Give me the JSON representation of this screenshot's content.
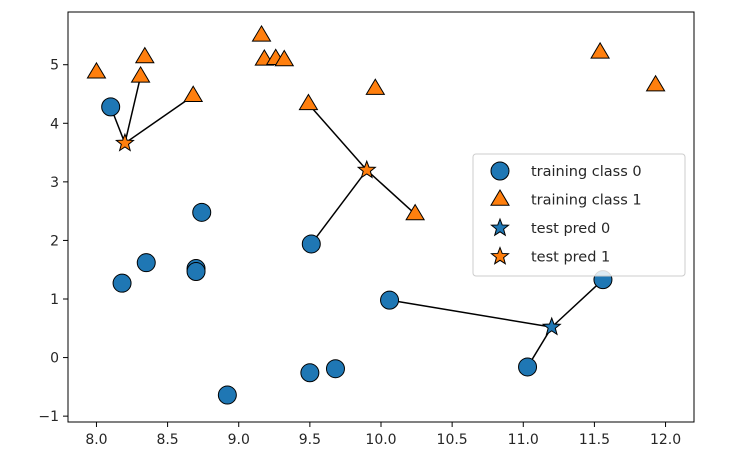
{
  "chart_data": {
    "type": "scatter",
    "title": "",
    "xlabel": "",
    "ylabel": "",
    "xlim": [
      7.8,
      12.2
    ],
    "ylim": [
      -1.1,
      5.9
    ],
    "x_ticks": [
      8.0,
      8.5,
      9.0,
      9.5,
      10.0,
      10.5,
      11.0,
      11.5,
      12.0
    ],
    "x_tick_labels": [
      "8.0",
      "8.5",
      "9.0",
      "9.5",
      "10.0",
      "10.5",
      "11.0",
      "11.5",
      "12.0"
    ],
    "y_ticks": [
      -1,
      0,
      1,
      2,
      3,
      4,
      5
    ],
    "y_tick_labels": [
      "−1",
      "0",
      "1",
      "2",
      "3",
      "4",
      "5"
    ],
    "grid": false,
    "legend_position": "center-right",
    "colors": {
      "class0": "#1f77b4",
      "class1": "#ff7f0e",
      "edge": "#000000",
      "line": "#000000"
    },
    "series": [
      {
        "name": "training class 0",
        "marker": "circle",
        "color": "#1f77b4",
        "points": [
          [
            8.1,
            4.28
          ],
          [
            8.18,
            1.27
          ],
          [
            8.35,
            1.62
          ],
          [
            8.7,
            1.52
          ],
          [
            8.7,
            1.47
          ],
          [
            8.74,
            2.48
          ],
          [
            8.92,
            -0.64
          ],
          [
            9.5,
            -0.26
          ],
          [
            9.51,
            1.94
          ],
          [
            9.68,
            -0.19
          ],
          [
            10.06,
            0.98
          ],
          [
            11.03,
            -0.16
          ],
          [
            11.56,
            1.33
          ]
        ]
      },
      {
        "name": "training class 1",
        "marker": "triangle",
        "color": "#ff7f0e",
        "points": [
          [
            8.0,
            4.87
          ],
          [
            8.31,
            4.8
          ],
          [
            8.34,
            5.13
          ],
          [
            8.68,
            4.47
          ],
          [
            9.16,
            5.5
          ],
          [
            9.18,
            5.09
          ],
          [
            9.26,
            5.1
          ],
          [
            9.32,
            5.08
          ],
          [
            9.49,
            4.33
          ],
          [
            9.96,
            4.59
          ],
          [
            10.24,
            2.45
          ],
          [
            11.54,
            5.21
          ],
          [
            11.93,
            4.65
          ]
        ]
      },
      {
        "name": "test pred 0",
        "marker": "star",
        "color": "#1f77b4",
        "points": [
          [
            11.2,
            0.52
          ]
        ]
      },
      {
        "name": "test pred 1",
        "marker": "star",
        "color": "#ff7f0e",
        "points": [
          [
            8.2,
            3.66
          ],
          [
            9.9,
            3.2
          ]
        ]
      }
    ],
    "neighbor_lines": [
      {
        "test": [
          8.2,
          3.66
        ],
        "neighbor": [
          8.1,
          4.28
        ]
      },
      {
        "test": [
          8.2,
          3.66
        ],
        "neighbor": [
          8.31,
          4.8
        ]
      },
      {
        "test": [
          8.2,
          3.66
        ],
        "neighbor": [
          8.68,
          4.47
        ]
      },
      {
        "test": [
          9.9,
          3.2
        ],
        "neighbor": [
          9.49,
          4.33
        ]
      },
      {
        "test": [
          9.9,
          3.2
        ],
        "neighbor": [
          9.51,
          1.94
        ]
      },
      {
        "test": [
          9.9,
          3.2
        ],
        "neighbor": [
          10.24,
          2.45
        ]
      },
      {
        "test": [
          11.2,
          0.52
        ],
        "neighbor": [
          10.06,
          0.98
        ]
      },
      {
        "test": [
          11.2,
          0.52
        ],
        "neighbor": [
          11.03,
          -0.16
        ]
      },
      {
        "test": [
          11.2,
          0.52
        ],
        "neighbor": [
          11.56,
          1.33
        ]
      }
    ],
    "legend": [
      {
        "label": "training class 0",
        "marker": "circle",
        "color": "#1f77b4"
      },
      {
        "label": "training class 1",
        "marker": "triangle",
        "color": "#ff7f0e"
      },
      {
        "label": "test pred 0",
        "marker": "star",
        "color": "#1f77b4"
      },
      {
        "label": "test pred 1",
        "marker": "star",
        "color": "#ff7f0e"
      }
    ]
  }
}
